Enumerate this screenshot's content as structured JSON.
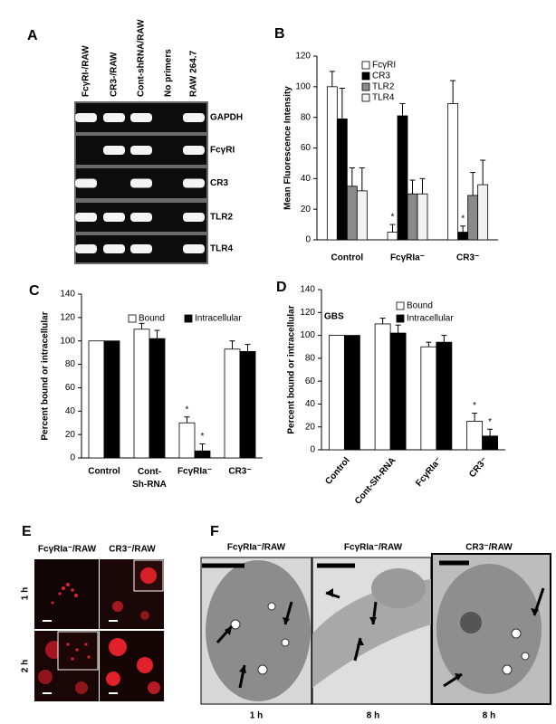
{
  "panel_a": {
    "label": "A",
    "lanes": [
      "FcγRI-/RAW",
      "CR3-/RAW",
      "Cont-shRNA/RAW",
      "No primers",
      "RAW 264.7"
    ],
    "genes": [
      "GAPDH",
      "FcγRI",
      "CR3",
      "TLR2",
      "TLR4"
    ]
  },
  "chart_data": [
    {
      "label": "B",
      "type": "bar",
      "ylabel": "Mean Fluorescence Intensity",
      "categories": [
        "Control",
        "FcγRIa⁻",
        "CR3⁻"
      ],
      "series": [
        {
          "name": "FcγRI",
          "color": "#ffffff",
          "values": [
            100,
            5,
            89
          ],
          "errors": [
            10,
            5,
            15
          ],
          "significance": [
            null,
            "*",
            null
          ]
        },
        {
          "name": "CR3",
          "color": "#000000",
          "values": [
            79,
            81,
            5
          ],
          "errors": [
            20,
            8,
            4
          ],
          "significance": [
            null,
            null,
            "*"
          ]
        },
        {
          "name": "TLR2",
          "color": "#8a8a8a",
          "values": [
            35,
            30,
            29
          ],
          "errors": [
            12,
            9,
            15
          ],
          "significance": [
            null,
            null,
            null
          ]
        },
        {
          "name": "TLR4",
          "color": "#f2f2f2",
          "values": [
            32,
            30,
            36
          ],
          "errors": [
            15,
            10,
            16
          ],
          "significance": [
            null,
            null,
            null
          ]
        }
      ],
      "ylim": [
        0,
        120
      ],
      "yticks": [
        0,
        20,
        40,
        60,
        80,
        100,
        120
      ],
      "legend": "top"
    },
    {
      "label": "C",
      "type": "bar",
      "ylabel": "Percent bound or intracellular",
      "categories": [
        "Control",
        "Cont-\nSh-RNA",
        "FcγRIa⁻",
        "CR3⁻"
      ],
      "series": [
        {
          "name": "Bound",
          "color": "#ffffff",
          "values": [
            100,
            110,
            30,
            93
          ],
          "errors": [
            0,
            5,
            5,
            7
          ],
          "significance": [
            null,
            null,
            "*",
            null
          ]
        },
        {
          "name": "Intracellular",
          "color": "#000000",
          "values": [
            100,
            102,
            6,
            91
          ],
          "errors": [
            0,
            7,
            6,
            6
          ],
          "significance": [
            null,
            null,
            "*",
            null
          ]
        }
      ],
      "ylim": [
        0,
        140
      ],
      "yticks": [
        0,
        20,
        40,
        60,
        80,
        100,
        120,
        140
      ],
      "legend": "top"
    },
    {
      "label": "D",
      "type": "bar",
      "ylabel": "Percent bound or intracellular",
      "annotation": "GBS",
      "categories": [
        "Control",
        "Cont-Sh-RNA",
        "FcγRIa⁻",
        "CR3⁻"
      ],
      "series": [
        {
          "name": "Bound",
          "color": "#ffffff",
          "values": [
            100,
            110,
            90,
            25
          ],
          "errors": [
            0,
            5,
            4,
            7
          ],
          "significance": [
            null,
            null,
            null,
            "*"
          ]
        },
        {
          "name": "Intracellular",
          "color": "#000000",
          "values": [
            100,
            102,
            94,
            12
          ],
          "errors": [
            0,
            7,
            6,
            6
          ],
          "significance": [
            null,
            null,
            null,
            "*"
          ]
        }
      ],
      "ylim": [
        0,
        140
      ],
      "yticks": [
        0,
        20,
        40,
        60,
        80,
        100,
        120,
        140
      ],
      "legend": "top"
    }
  ],
  "panel_e": {
    "label": "E",
    "columns": [
      "FcγRIa⁻/RAW",
      "CR3⁻/RAW"
    ],
    "rows": [
      "1 h",
      "2 h"
    ]
  },
  "panel_f": {
    "label": "F",
    "titles": [
      "FcγRIa⁻/RAW",
      "FcγRIa⁻/RAW",
      "CR3⁻/RAW"
    ],
    "times": [
      "1 h",
      "8 h",
      "8 h"
    ]
  }
}
